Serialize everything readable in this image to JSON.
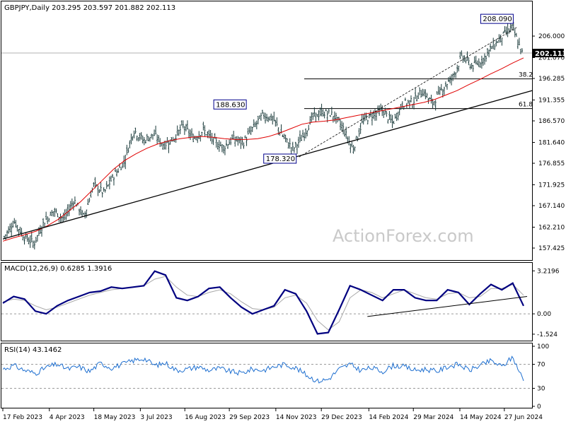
{
  "chart_data": {
    "type": "candlestick",
    "symbol_header": "GBPJPY,Daily  203.295 203.597 201.882 202.113",
    "watermark": "ActionForex.com",
    "price_axis": {
      "min": 155.0,
      "max": 212.0,
      "tick_labels": [
        "206.000",
        "201.070",
        "196.285",
        "191.355",
        "186.570",
        "181.640",
        "176.855",
        "171.925",
        "167.140",
        "162.210",
        "157.425"
      ]
    },
    "current_price": {
      "value": 202.113,
      "label": "202.113"
    },
    "x_axis": {
      "tick_labels": [
        "17 Feb 2023",
        "4 Apr 2023",
        "18 May 2023",
        "3 Jul 2023",
        "16 Aug 2023",
        "29 Sep 2023",
        "14 Nov 2023",
        "29 Dec 2023",
        "14 Feb 2024",
        "29 Mar 2024",
        "14 May 2024",
        "27 Jun 2024"
      ]
    },
    "annotations": [
      {
        "label": "208.090",
        "value": 208.09,
        "date": "2024-07-10"
      },
      {
        "label": "188.630",
        "value": 188.63,
        "date": "2023-10-20"
      },
      {
        "label": "178.320",
        "value": 178.32,
        "date": "2023-12-07"
      }
    ],
    "fib_levels": [
      {
        "label": "38.2",
        "value": 196.2
      },
      {
        "label": "61.8",
        "value": 189.4
      }
    ],
    "trendline": {
      "from": {
        "date": "2023-02-17",
        "value": 159.5
      },
      "to": {
        "date": "2024-07-16",
        "value": 193.5
      }
    },
    "channel_line": {
      "from": {
        "date": "2023-12-07",
        "value": 178.3
      },
      "to": {
        "date": "2024-07-10",
        "value": 208.1
      }
    },
    "price_series": [
      160.0,
      163.5,
      160.0,
      158.5,
      163.5,
      166.0,
      164.0,
      168.5,
      164.5,
      172.0,
      170.0,
      174.0,
      177.0,
      184.5,
      182.0,
      183.5,
      181.0,
      182.5,
      185.5,
      182.5,
      184.5,
      182.0,
      180.5,
      182.5,
      181.5,
      185.0,
      188.0,
      187.0,
      183.0,
      180.0,
      183.0,
      187.5,
      188.5,
      188.0,
      185.0,
      180.0,
      186.5,
      188.0,
      189.0,
      186.0,
      190.5,
      191.0,
      193.5,
      190.5,
      194.0,
      196.5,
      201.5,
      199.0,
      200.5,
      203.5,
      206.0,
      208.0,
      202.1
    ],
    "ma_series": [
      159.0,
      159.8,
      160.5,
      161.3,
      162.5,
      164.0,
      166.0,
      168.0,
      170.5,
      173.0,
      175.5,
      177.5,
      179.0,
      180.3,
      181.3,
      182.0,
      182.5,
      182.8,
      183.0,
      182.8,
      182.5,
      182.3,
      182.3,
      182.5,
      183.0,
      183.8,
      184.8,
      185.8,
      186.3,
      186.5,
      186.8,
      187.3,
      187.8,
      188.3,
      188.8,
      189.3,
      189.8,
      190.3,
      190.8,
      191.5,
      192.5,
      193.5,
      194.8,
      196.0,
      197.3,
      198.5,
      199.8,
      201.0
    ],
    "ma_end_label": "201.070",
    "macd": {
      "label": "MACD(12,26,9) 0.6285 1.3916",
      "axis_min": -1.9,
      "axis_max": 3.5,
      "tick_labels": [
        {
          "label": "3.2196",
          "value": 3.2196
        },
        {
          "label": "0.00",
          "value": 0.0
        },
        {
          "label": "-1.524",
          "value": -1.524
        }
      ],
      "values": [
        0.8,
        1.3,
        1.1,
        0.2,
        0.0,
        0.6,
        1.0,
        1.3,
        1.6,
        1.7,
        2.0,
        1.9,
        2.0,
        2.1,
        3.2,
        2.9,
        1.2,
        1.0,
        1.3,
        1.9,
        2.0,
        1.2,
        0.5,
        0.0,
        0.3,
        0.6,
        1.8,
        1.5,
        0.2,
        -1.5,
        -1.4,
        0.3,
        2.1,
        1.8,
        1.4,
        1.0,
        1.8,
        1.8,
        1.2,
        1.0,
        1.0,
        1.8,
        1.6,
        0.7,
        1.5,
        2.2,
        1.8,
        2.3,
        0.6
      ],
      "signal": [
        0.9,
        1.1,
        1.0,
        0.6,
        0.3,
        0.5,
        0.8,
        1.1,
        1.4,
        1.6,
        1.8,
        1.9,
        2.0,
        2.1,
        2.6,
        2.8,
        2.0,
        1.4,
        1.3,
        1.6,
        1.8,
        1.5,
        0.9,
        0.4,
        0.3,
        0.5,
        1.2,
        1.4,
        0.8,
        -0.5,
        -1.2,
        -0.6,
        1.2,
        1.8,
        1.6,
        1.2,
        1.5,
        1.8,
        1.5,
        1.2,
        1.1,
        1.5,
        1.6,
        1.2,
        1.3,
        1.9,
        1.9,
        2.2,
        1.4
      ],
      "trendline": {
        "from_index": 31,
        "from_value": -0.2,
        "to_index": 48,
        "to_value": 1.3
      }
    },
    "rsi": {
      "label": "RSI(14) 43.1462",
      "axis_min": 0,
      "axis_max": 100,
      "tick_labels": [
        {
          "label": "100",
          "value": 100
        },
        {
          "label": "70",
          "value": 70
        },
        {
          "label": "30",
          "value": 30
        },
        {
          "label": "0",
          "value": 0
        }
      ],
      "values": [
        62,
        68,
        60,
        55,
        65,
        70,
        62,
        66,
        58,
        72,
        64,
        70,
        76,
        80,
        68,
        72,
        60,
        62,
        66,
        60,
        63,
        58,
        55,
        62,
        60,
        66,
        70,
        64,
        52,
        42,
        45,
        62,
        70,
        60,
        64,
        58,
        68,
        66,
        60,
        62,
        58,
        66,
        70,
        60,
        68,
        76,
        66,
        82,
        43
      ]
    }
  }
}
